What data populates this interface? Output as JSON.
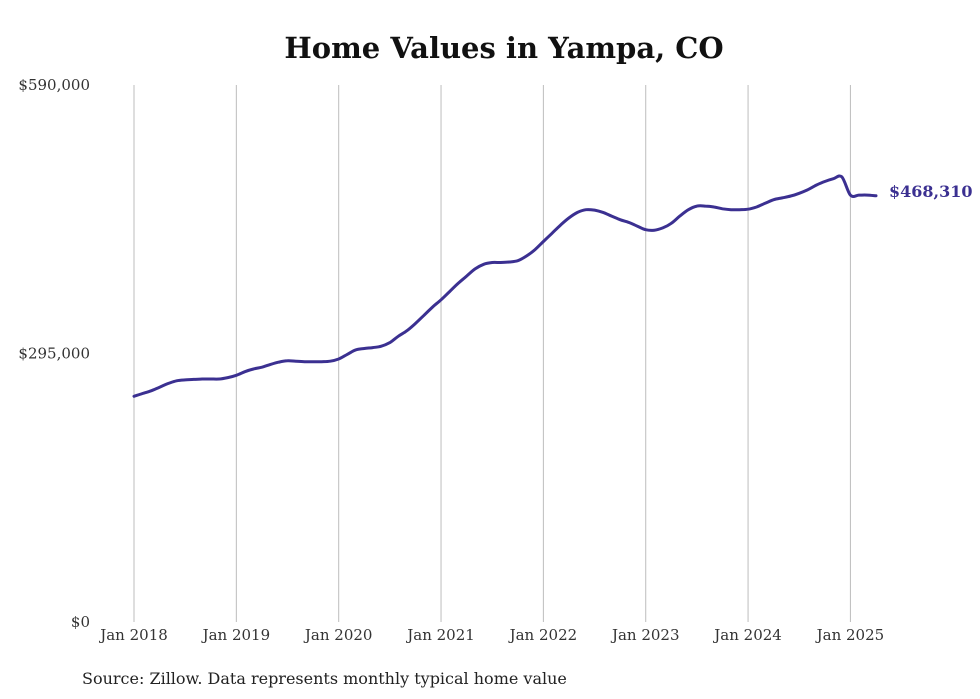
{
  "chart_data": {
    "type": "line",
    "title": "Home Values in Yampa, CO",
    "source": "Source: Zillow. Data represents monthly typical home value",
    "ylim": [
      0,
      590000
    ],
    "yticks": [
      0,
      295000,
      590000
    ],
    "ytick_labels": [
      "$0",
      "$295,000",
      "$590,000"
    ],
    "xlim": [
      "2018-01",
      "2025-04"
    ],
    "xticks": [
      "2018-01",
      "2019-01",
      "2020-01",
      "2021-01",
      "2022-01",
      "2023-01",
      "2024-01",
      "2025-01"
    ],
    "xtick_labels": [
      "Jan 2018",
      "Jan 2019",
      "Jan 2020",
      "Jan 2021",
      "Jan 2022",
      "Jan 2023",
      "Jan 2024",
      "Jan 2025"
    ],
    "grid": "vertical",
    "line_color": "#3b3091",
    "end_label": "$468,310",
    "x": [
      "2018-01",
      "2018-02",
      "2018-03",
      "2018-04",
      "2018-05",
      "2018-06",
      "2018-07",
      "2018-08",
      "2018-09",
      "2018-10",
      "2018-11",
      "2018-12",
      "2019-01",
      "2019-02",
      "2019-03",
      "2019-04",
      "2019-05",
      "2019-06",
      "2019-07",
      "2019-08",
      "2019-09",
      "2019-10",
      "2019-11",
      "2019-12",
      "2020-01",
      "2020-02",
      "2020-03",
      "2020-04",
      "2020-05",
      "2020-06",
      "2020-07",
      "2020-08",
      "2020-09",
      "2020-10",
      "2020-11",
      "2020-12",
      "2021-01",
      "2021-02",
      "2021-03",
      "2021-04",
      "2021-05",
      "2021-06",
      "2021-07",
      "2021-08",
      "2021-09",
      "2021-10",
      "2021-11",
      "2021-12",
      "2022-01",
      "2022-02",
      "2022-03",
      "2022-04",
      "2022-05",
      "2022-06",
      "2022-07",
      "2022-08",
      "2022-09",
      "2022-10",
      "2022-11",
      "2022-12",
      "2023-01",
      "2023-02",
      "2023-03",
      "2023-04",
      "2023-05",
      "2023-06",
      "2023-07",
      "2023-08",
      "2023-09",
      "2023-10",
      "2023-11",
      "2023-12",
      "2024-01",
      "2024-02",
      "2024-03",
      "2024-04",
      "2024-05",
      "2024-06",
      "2024-07",
      "2024-08",
      "2024-09",
      "2024-10",
      "2024-11",
      "2024-12",
      "2025-01",
      "2025-02",
      "2025-03",
      "2025-04"
    ],
    "y": [
      248000,
      251000,
      254000,
      258000,
      262000,
      265000,
      266000,
      266500,
      267000,
      267000,
      267000,
      268500,
      271000,
      275000,
      278000,
      280000,
      283000,
      285500,
      287000,
      286500,
      286000,
      286000,
      286000,
      286500,
      289000,
      294000,
      299000,
      300500,
      301500,
      303000,
      307000,
      314000,
      320000,
      328000,
      337000,
      346000,
      354000,
      363000,
      372000,
      380000,
      388000,
      393000,
      395000,
      395000,
      395500,
      397000,
      402000,
      409000,
      418000,
      427000,
      436000,
      444000,
      450000,
      453000,
      452500,
      450000,
      446000,
      442000,
      439000,
      435000,
      431000,
      430500,
      433000,
      438000,
      446000,
      453000,
      457000,
      457000,
      456000,
      454000,
      453000,
      453000,
      453500,
      456000,
      460000,
      464000,
      466000,
      468000,
      471000,
      475000,
      480000,
      484000,
      487000,
      489000,
      469000,
      469000,
      469000,
      468310
    ]
  }
}
